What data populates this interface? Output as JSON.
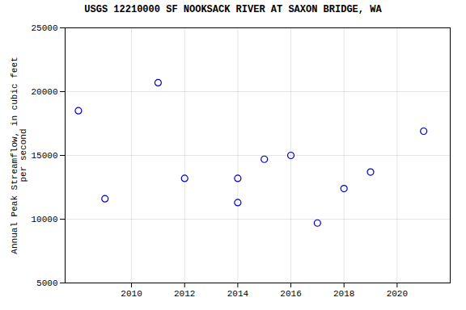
{
  "chart_data": {
    "type": "scatter",
    "title": "USGS 12210000 SF NOOKSACK RIVER AT SAXON BRIDGE, WA",
    "ylabel": "Annual Peak Streamflow, in cubic feet\nper second",
    "x": [
      2008,
      2009,
      2011,
      2012,
      2014,
      2014,
      2015,
      2016,
      2017,
      2018,
      2019,
      2021
    ],
    "values": [
      18500,
      11600,
      20700,
      13200,
      13200,
      11300,
      14700,
      15000,
      9700,
      12400,
      13700,
      16900
    ],
    "color": "#0000cc",
    "marker": "circle",
    "xlim": [
      2007.5,
      2022
    ],
    "ylim": [
      5000,
      25000
    ],
    "xticks": [
      2010,
      2012,
      2014,
      2016,
      2018,
      2020
    ],
    "yticks": [
      5000,
      10000,
      15000,
      20000,
      25000
    ],
    "grid": true
  }
}
